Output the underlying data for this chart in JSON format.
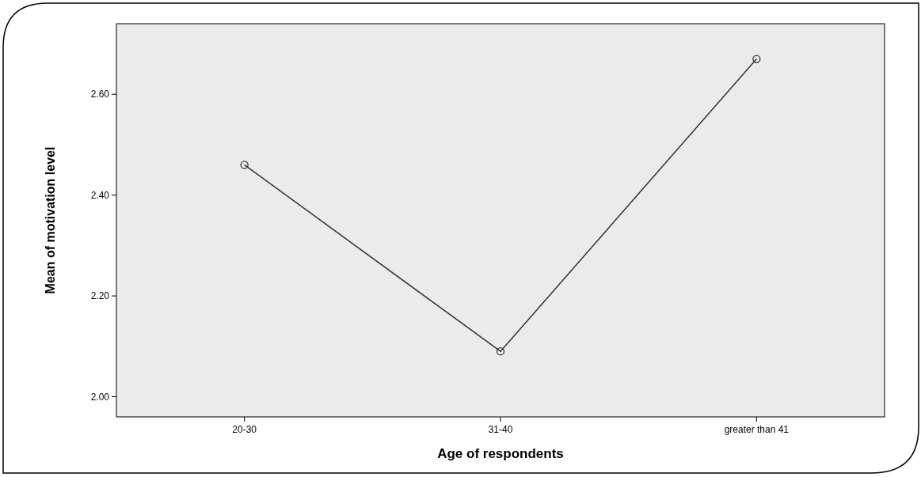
{
  "chart_data": {
    "type": "line",
    "xlabel": "Age of respondents",
    "ylabel": "Mean of motivation level",
    "categories": [
      "20-30",
      "31-40",
      "greater than 41"
    ],
    "series": [
      {
        "color": "#333333",
        "values": [
          2.46,
          2.09,
          2.67
        ]
      }
    ],
    "ylim": [
      1.96,
      2.74
    ],
    "yticks": [
      {
        "value": 2,
        "label": "2.00"
      },
      {
        "value": 2.2,
        "label": "2.20"
      },
      {
        "value": 2.4,
        "label": "2.40"
      },
      {
        "value": 2.6,
        "label": "2.60"
      }
    ],
    "grid": false,
    "marker": "circle",
    "line_style": "solid"
  }
}
